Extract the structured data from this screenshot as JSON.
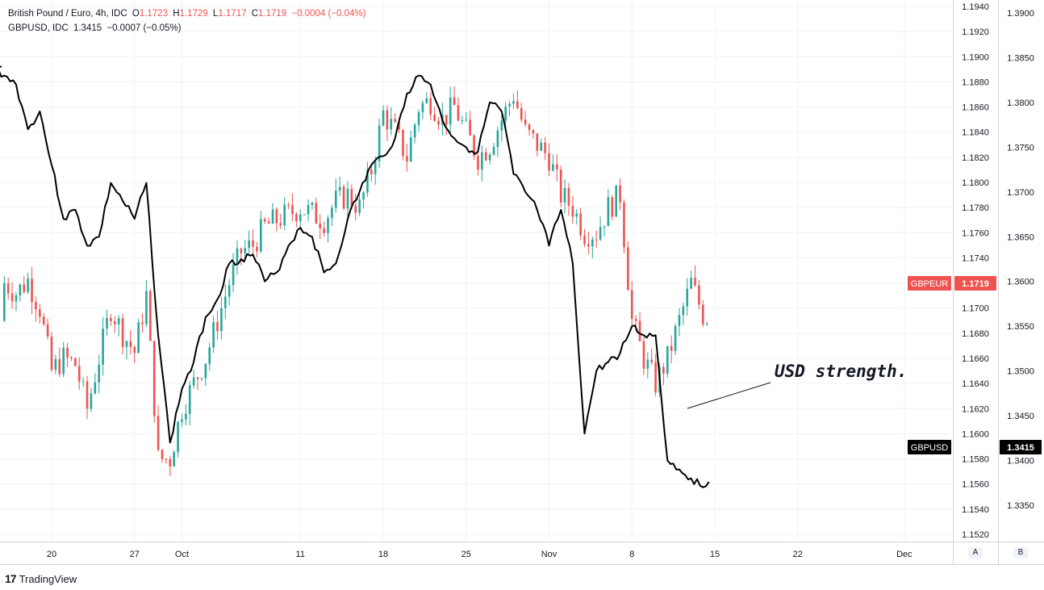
{
  "legend": {
    "series1_name": "British Pound / Euro, 4h, IDC",
    "o_label": "O",
    "o_value": "1.1723",
    "h_label": "H",
    "h_value": "1.1729",
    "l_label": "L",
    "l_value": "1.1717",
    "c_label": "C",
    "c_value": "1.1719",
    "change1": "−0.0004 (−0.04%)",
    "series2_name": "GBPUSD, IDC",
    "series2_value": "1.3415",
    "change2": "−0.0007 (−0.05%)"
  },
  "annotation": "USD strength.",
  "footer": {
    "logo": "17",
    "brand": "TradingView"
  },
  "axis_buttons": {
    "a": "A",
    "b": "B"
  },
  "price_tags": {
    "gbpeur_name": "GBPEUR",
    "gbpeur_value": "1.1719",
    "gbpusd_name": "GBPUSD",
    "gbpusd_value": "1.3415"
  },
  "colors": {
    "up": "#26a69a",
    "down": "#ef5350",
    "line": "#000000",
    "grid": "#f0f3fa",
    "tag_red": "#ef5350",
    "tag_black": "#000000"
  },
  "chart_data": {
    "type": "line",
    "title": "British Pound / Euro, 4h, IDC",
    "x_tick_labels": [
      "20",
      "27",
      "Oct",
      "11",
      "18",
      "25",
      "Nov",
      "8",
      "15",
      "22",
      "Dec"
    ],
    "y_axis_A": {
      "series": "GBPEUR",
      "range": [
        1.151,
        1.1945
      ],
      "ticks": [
        "1.1520",
        "1.1540",
        "1.1560",
        "1.1580",
        "1.1600",
        "1.1620",
        "1.1640",
        "1.1660",
        "1.1680",
        "1.1700",
        "1.1720",
        "1.1740",
        "1.1760",
        "1.1780",
        "1.1800",
        "1.1820",
        "1.1840",
        "1.1860",
        "1.1880",
        "1.1900",
        "1.1920",
        "1.1940"
      ]
    },
    "y_axis_B": {
      "series": "GBPUSD",
      "range": [
        1.3325,
        1.3925
      ],
      "ticks": [
        "1.3350",
        "1.3400",
        "1.3450",
        "1.3500",
        "1.3550",
        "1.3600",
        "1.3650",
        "1.3700",
        "1.3750",
        "1.3800",
        "1.3850",
        "1.3900"
      ]
    },
    "grid": true,
    "series": [
      {
        "name": "GBPEUR",
        "type": "candlestick",
        "close_points": [
          [
            "Sep 15",
            1.169
          ],
          [
            "Sep 16",
            1.172
          ],
          [
            "Sep 17",
            1.1712
          ],
          [
            "Sep 18",
            1.1722
          ],
          [
            "Sep 19",
            1.17
          ],
          [
            "Sep 20",
            1.165
          ],
          [
            "Sep 21",
            1.166
          ],
          [
            "Sep 22",
            1.1655
          ],
          [
            "Sep 23",
            1.162
          ],
          [
            "Sep 24",
            1.166
          ],
          [
            "Sep 25",
            1.17
          ],
          [
            "Sep 26",
            1.168
          ],
          [
            "Sep 27",
            1.1665
          ],
          [
            "Sep 28",
            1.171
          ],
          [
            "Sep 29",
            1.158
          ],
          [
            "Sep 30",
            1.158
          ],
          [
            "Oct 1",
            1.162
          ],
          [
            "Oct 2",
            1.164
          ],
          [
            "Oct 3",
            1.166
          ],
          [
            "Oct 4",
            1.169
          ],
          [
            "Oct 5",
            1.172
          ],
          [
            "Oct 6",
            1.1745
          ],
          [
            "Oct 7",
            1.175
          ],
          [
            "Oct 8",
            1.1765
          ],
          [
            "Oct 9",
            1.177
          ],
          [
            "Oct 10",
            1.1775
          ],
          [
            "Oct 11",
            1.178
          ],
          [
            "Oct 12",
            1.1775
          ],
          [
            "Oct 13",
            1.177
          ],
          [
            "Oct 14",
            1.1785
          ],
          [
            "Oct 15",
            1.179
          ],
          [
            "Oct 16",
            1.178
          ],
          [
            "Oct 17",
            1.181
          ],
          [
            "Oct 18",
            1.1855
          ],
          [
            "Oct 19",
            1.184
          ],
          [
            "Oct 20",
            1.182
          ],
          [
            "Oct 21",
            1.186
          ],
          [
            "Oct 22",
            1.1865
          ],
          [
            "Oct 23",
            1.185
          ],
          [
            "Oct 24",
            1.186
          ],
          [
            "Oct 25",
            1.184
          ],
          [
            "Oct 26",
            1.182
          ],
          [
            "Oct 27",
            1.183
          ],
          [
            "Oct 28",
            1.185
          ],
          [
            "Oct 29",
            1.187
          ],
          [
            "Oct 30",
            1.184
          ],
          [
            "Oct 31",
            1.183
          ],
          [
            "Nov 1",
            1.182
          ],
          [
            "Nov 2",
            1.179
          ],
          [
            "Nov 3",
            1.178
          ],
          [
            "Nov 4",
            1.176
          ],
          [
            "Nov 5",
            1.176
          ],
          [
            "Nov 6",
            1.178
          ],
          [
            "Nov 7",
            1.179
          ],
          [
            "Nov 8",
            1.169
          ],
          [
            "Nov 9",
            1.166
          ],
          [
            "Nov 10",
            1.164
          ],
          [
            "Nov 11",
            1.166
          ],
          [
            "Nov 12",
            1.169
          ],
          [
            "Nov 13",
            1.172
          ],
          [
            "Nov 14",
            1.1695
          ],
          [
            "Nov 15",
            1.169
          ],
          [
            "Nov 16",
            1.17
          ],
          [
            "Nov 17",
            1.168
          ],
          [
            "Nov 18",
            1.167
          ],
          [
            "Nov 19",
            1.169
          ],
          [
            "Nov 20",
            1.1719
          ]
        ]
      },
      {
        "name": "GBPUSD",
        "type": "line",
        "points": [
          [
            "Sep 15",
            1.384
          ],
          [
            "Sep 16",
            1.383
          ],
          [
            "Sep 17",
            1.382
          ],
          [
            "Sep 18",
            1.377
          ],
          [
            "Sep 19",
            1.379
          ],
          [
            "Sep 20",
            1.373
          ],
          [
            "Sep 21",
            1.367
          ],
          [
            "Sep 22",
            1.368
          ],
          [
            "Sep 23",
            1.364
          ],
          [
            "Sep 24",
            1.365
          ],
          [
            "Sep 25",
            1.371
          ],
          [
            "Sep 26",
            1.369
          ],
          [
            "Sep 27",
            1.367
          ],
          [
            "Sep 28",
            1.371
          ],
          [
            "Sep 29",
            1.354
          ],
          [
            "Sep 30",
            1.342
          ],
          [
            "Oct 1",
            1.348
          ],
          [
            "Oct 2",
            1.351
          ],
          [
            "Oct 3",
            1.356
          ],
          [
            "Oct 4",
            1.358
          ],
          [
            "Oct 5",
            1.362
          ],
          [
            "Oct 6",
            1.3625
          ],
          [
            "Oct 7",
            1.363
          ],
          [
            "Oct 8",
            1.36
          ],
          [
            "Oct 9",
            1.361
          ],
          [
            "Oct 10",
            1.364
          ],
          [
            "Oct 11",
            1.366
          ],
          [
            "Oct 12",
            1.365
          ],
          [
            "Oct 13",
            1.361
          ],
          [
            "Oct 14",
            1.362
          ],
          [
            "Oct 15",
            1.367
          ],
          [
            "Oct 16",
            1.37
          ],
          [
            "Oct 17",
            1.373
          ],
          [
            "Oct 18",
            1.374
          ],
          [
            "Oct 19",
            1.376
          ],
          [
            "Oct 20",
            1.381
          ],
          [
            "Oct 21",
            1.383
          ],
          [
            "Oct 22",
            1.382
          ],
          [
            "Oct 23",
            1.378
          ],
          [
            "Oct 24",
            1.376
          ],
          [
            "Oct 25",
            1.375
          ],
          [
            "Oct 26",
            1.3745
          ],
          [
            "Oct 27",
            1.38
          ],
          [
            "Oct 28",
            1.379
          ],
          [
            "Oct 29",
            1.372
          ],
          [
            "Oct 30",
            1.37
          ],
          [
            "Oct 31",
            1.368
          ],
          [
            "Nov 1",
            1.364
          ],
          [
            "Nov 2",
            1.368
          ],
          [
            "Nov 3",
            1.362
          ],
          [
            "Nov 4",
            1.343
          ],
          [
            "Nov 5",
            1.35
          ],
          [
            "Nov 6",
            1.351
          ],
          [
            "Nov 7",
            1.352
          ],
          [
            "Nov 8",
            1.355
          ],
          [
            "Nov 9",
            1.354
          ],
          [
            "Nov 10",
            1.354
          ],
          [
            "Nov 11",
            1.34
          ],
          [
            "Nov 12",
            1.339
          ],
          [
            "Nov 13",
            1.338
          ],
          [
            "Nov 14",
            1.337
          ],
          [
            "Nov 15",
            1.339
          ],
          [
            "Nov 16",
            1.341
          ],
          [
            "Nov 17",
            1.3415
          ]
        ]
      }
    ]
  }
}
